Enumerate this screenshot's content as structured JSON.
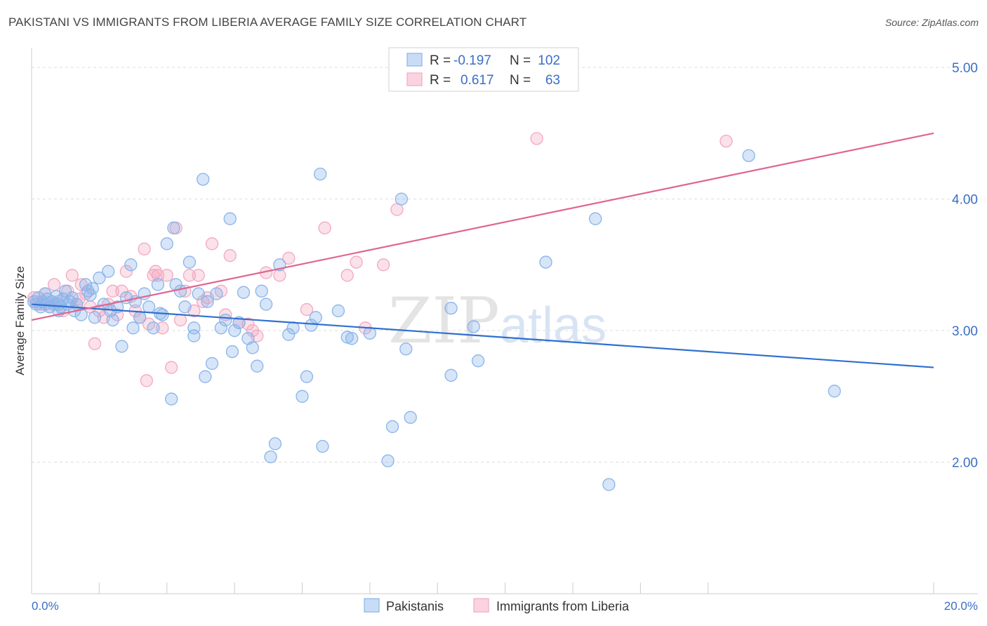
{
  "title": "PAKISTANI VS IMMIGRANTS FROM LIBERIA AVERAGE FAMILY SIZE CORRELATION CHART",
  "source": "Source: ZipAtlas.com",
  "watermark": {
    "zip": "ZIP",
    "atlas": "atlas"
  },
  "chart_data": {
    "type": "scatter",
    "ylabel": "Average Family Size",
    "xlim": [
      0,
      20
    ],
    "ylim": [
      1.0,
      5.15
    ],
    "x_tick_labels": {
      "min": "0.0%",
      "max": "20.0%"
    },
    "y_ticks": [
      {
        "value": 2.0,
        "label": "2.00"
      },
      {
        "value": 3.0,
        "label": "3.00"
      },
      {
        "value": 4.0,
        "label": "4.00"
      },
      {
        "value": 5.0,
        "label": "5.00"
      }
    ],
    "colors": {
      "Pakistanis": "#8ab4ea",
      "Immigrants from Liberia": "#f3a8c1",
      "pak_line": "#2f6fd0",
      "lib_line": "#e0658f"
    },
    "legend": [
      {
        "series": "Pakistanis",
        "r_label": "R = ",
        "r_value": "-0.197",
        "n_label": "N = ",
        "n_value": "102"
      },
      {
        "series": "Immigrants from Liberia",
        "r_label": "R = ",
        "r_value": "0.617",
        "n_label": "N = ",
        "n_value": "63"
      }
    ],
    "series": [
      {
        "name": "Pakistanis",
        "trend": {
          "x": [
            0,
            20
          ],
          "y": [
            3.2,
            2.72
          ]
        },
        "points": [
          [
            0.05,
            3.22
          ],
          [
            0.1,
            3.2
          ],
          [
            0.15,
            3.25
          ],
          [
            0.2,
            3.18
          ],
          [
            0.25,
            3.22
          ],
          [
            0.3,
            3.2
          ],
          [
            0.35,
            3.24
          ],
          [
            0.4,
            3.18
          ],
          [
            0.45,
            3.22
          ],
          [
            0.5,
            3.2
          ],
          [
            0.55,
            3.26
          ],
          [
            0.6,
            3.2
          ],
          [
            0.65,
            3.18
          ],
          [
            0.7,
            3.24
          ],
          [
            0.75,
            3.3
          ],
          [
            0.8,
            3.2
          ],
          [
            0.85,
            3.22
          ],
          [
            0.9,
            3.25
          ],
          [
            0.95,
            3.15
          ],
          [
            1.0,
            3.2
          ],
          [
            1.1,
            3.12
          ],
          [
            1.2,
            3.35
          ],
          [
            1.3,
            3.27
          ],
          [
            1.35,
            3.32
          ],
          [
            1.4,
            3.1
          ],
          [
            1.5,
            3.4
          ],
          [
            1.6,
            3.2
          ],
          [
            1.7,
            3.45
          ],
          [
            1.75,
            3.15
          ],
          [
            1.8,
            3.08
          ],
          [
            1.9,
            3.18
          ],
          [
            2.0,
            2.88
          ],
          [
            2.1,
            3.25
          ],
          [
            2.2,
            3.5
          ],
          [
            2.25,
            3.02
          ],
          [
            2.3,
            3.22
          ],
          [
            2.4,
            3.1
          ],
          [
            2.5,
            3.28
          ],
          [
            2.6,
            3.18
          ],
          [
            2.7,
            3.02
          ],
          [
            2.8,
            3.35
          ],
          [
            2.85,
            3.13
          ],
          [
            2.9,
            3.12
          ],
          [
            3.0,
            3.66
          ],
          [
            3.1,
            2.48
          ],
          [
            3.15,
            3.78
          ],
          [
            3.2,
            3.35
          ],
          [
            3.3,
            3.3
          ],
          [
            3.4,
            3.18
          ],
          [
            3.5,
            3.52
          ],
          [
            3.6,
            2.96
          ],
          [
            3.6,
            3.02
          ],
          [
            3.7,
            3.28
          ],
          [
            3.8,
            4.15
          ],
          [
            3.85,
            2.65
          ],
          [
            3.9,
            3.22
          ],
          [
            4.0,
            2.75
          ],
          [
            4.1,
            3.28
          ],
          [
            4.2,
            3.02
          ],
          [
            4.3,
            3.08
          ],
          [
            4.4,
            3.85
          ],
          [
            4.45,
            2.84
          ],
          [
            4.5,
            3.0
          ],
          [
            4.6,
            3.06
          ],
          [
            4.7,
            3.29
          ],
          [
            4.8,
            2.94
          ],
          [
            4.9,
            2.87
          ],
          [
            5.0,
            2.73
          ],
          [
            5.1,
            3.3
          ],
          [
            5.2,
            3.2
          ],
          [
            5.3,
            2.04
          ],
          [
            5.4,
            2.14
          ],
          [
            5.5,
            3.5
          ],
          [
            5.7,
            2.97
          ],
          [
            5.8,
            3.02
          ],
          [
            6.0,
            2.5
          ],
          [
            6.1,
            2.65
          ],
          [
            6.2,
            3.04
          ],
          [
            6.3,
            3.1
          ],
          [
            6.4,
            4.19
          ],
          [
            6.45,
            2.12
          ],
          [
            6.8,
            3.15
          ],
          [
            7.0,
            2.95
          ],
          [
            7.1,
            2.94
          ],
          [
            7.5,
            2.98
          ],
          [
            7.9,
            2.01
          ],
          [
            8.0,
            2.27
          ],
          [
            8.2,
            4.0
          ],
          [
            8.3,
            2.86
          ],
          [
            8.4,
            2.34
          ],
          [
            9.3,
            3.17
          ],
          [
            9.3,
            2.66
          ],
          [
            9.8,
            3.03
          ],
          [
            9.9,
            2.77
          ],
          [
            11.4,
            3.52
          ],
          [
            12.5,
            3.85
          ],
          [
            12.8,
            1.83
          ],
          [
            15.9,
            4.33
          ],
          [
            17.8,
            2.54
          ],
          [
            0.3,
            3.28
          ],
          [
            0.6,
            3.15
          ],
          [
            1.25,
            3.3
          ]
        ]
      },
      {
        "name": "Immigrants from Liberia",
        "trend": {
          "x": [
            0,
            20
          ],
          "y": [
            3.08,
            4.5
          ]
        },
        "points": [
          [
            0.05,
            3.25
          ],
          [
            0.1,
            3.22
          ],
          [
            0.2,
            3.2
          ],
          [
            0.3,
            3.28
          ],
          [
            0.4,
            3.18
          ],
          [
            0.5,
            3.35
          ],
          [
            0.6,
            3.22
          ],
          [
            0.7,
            3.15
          ],
          [
            0.8,
            3.3
          ],
          [
            0.9,
            3.42
          ],
          [
            1.0,
            3.2
          ],
          [
            1.05,
            3.24
          ],
          [
            1.1,
            3.35
          ],
          [
            1.2,
            3.28
          ],
          [
            1.3,
            3.18
          ],
          [
            1.4,
            2.9
          ],
          [
            1.5,
            3.15
          ],
          [
            1.6,
            3.1
          ],
          [
            1.7,
            3.2
          ],
          [
            1.8,
            3.3
          ],
          [
            1.9,
            3.12
          ],
          [
            2.0,
            3.3
          ],
          [
            2.1,
            3.45
          ],
          [
            2.2,
            3.26
          ],
          [
            2.3,
            3.15
          ],
          [
            2.4,
            3.1
          ],
          [
            2.5,
            3.62
          ],
          [
            2.55,
            2.62
          ],
          [
            2.6,
            3.05
          ],
          [
            2.7,
            3.42
          ],
          [
            2.75,
            3.45
          ],
          [
            2.8,
            3.42
          ],
          [
            2.9,
            3.02
          ],
          [
            3.0,
            3.42
          ],
          [
            3.1,
            2.72
          ],
          [
            3.2,
            3.78
          ],
          [
            3.3,
            3.08
          ],
          [
            3.4,
            3.3
          ],
          [
            3.5,
            3.42
          ],
          [
            3.6,
            3.15
          ],
          [
            3.7,
            3.42
          ],
          [
            3.8,
            3.22
          ],
          [
            3.9,
            3.25
          ],
          [
            4.0,
            3.66
          ],
          [
            4.2,
            3.3
          ],
          [
            4.3,
            3.12
          ],
          [
            4.4,
            3.57
          ],
          [
            4.6,
            3.06
          ],
          [
            4.8,
            3.05
          ],
          [
            4.9,
            3.0
          ],
          [
            5.0,
            2.96
          ],
          [
            5.2,
            3.44
          ],
          [
            5.5,
            3.42
          ],
          [
            5.7,
            3.55
          ],
          [
            6.1,
            3.16
          ],
          [
            6.5,
            3.78
          ],
          [
            7.0,
            3.42
          ],
          [
            7.2,
            3.52
          ],
          [
            7.4,
            3.02
          ],
          [
            7.8,
            3.5
          ],
          [
            8.1,
            3.92
          ],
          [
            11.2,
            4.46
          ],
          [
            15.4,
            4.44
          ]
        ]
      }
    ]
  },
  "bottom_legend": [
    "Pakistanis",
    "Immigrants from Liberia"
  ]
}
